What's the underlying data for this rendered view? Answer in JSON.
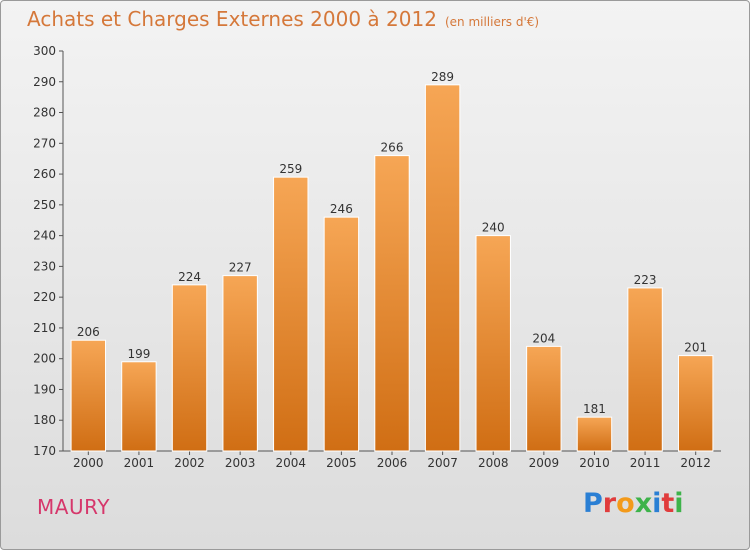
{
  "header": {
    "title": "Achats et Charges Externes 2000 à 2012",
    "subtitle": "(en milliers d'€)"
  },
  "footer": {
    "place": "MAURY",
    "logo_text": "Proxiti"
  },
  "colors": {
    "bar_light": "#f6a655",
    "bar_dark": "#d06e14",
    "title": "#d5783a",
    "place": "#d6376b",
    "logo_letters": [
      "#2a7fd4",
      "#e03c3c",
      "#f39a1a",
      "#3db34a",
      "#2a7fd4",
      "#e03c3c",
      "#3db34a"
    ]
  },
  "chart_data": {
    "type": "bar",
    "title": "Achats et Charges Externes 2000 à 2012",
    "subtitle": "(en milliers d'€)",
    "xlabel": "",
    "ylabel": "",
    "categories": [
      "2000",
      "2001",
      "2002",
      "2003",
      "2004",
      "2005",
      "2006",
      "2007",
      "2008",
      "2009",
      "2010",
      "2011",
      "2012"
    ],
    "values": [
      206,
      199,
      224,
      227,
      259,
      246,
      266,
      289,
      240,
      204,
      181,
      223,
      201
    ],
    "ylim": [
      170,
      300
    ],
    "yticks": [
      170,
      180,
      190,
      200,
      210,
      220,
      230,
      240,
      250,
      260,
      270,
      280,
      290,
      300
    ],
    "grid": false,
    "data_labels": true
  }
}
